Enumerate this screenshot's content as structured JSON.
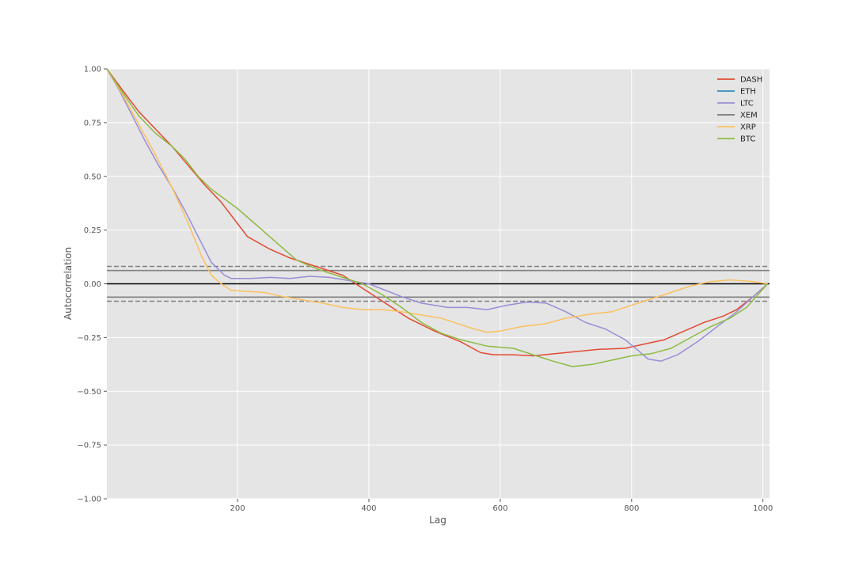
{
  "chart_data": {
    "type": "line",
    "title": "",
    "xlabel": "Lag",
    "ylabel": "Autocorrelation",
    "xlim": [
      1,
      1010
    ],
    "ylim": [
      -1.0,
      1.0
    ],
    "xticks": [
      200,
      400,
      600,
      800,
      1000
    ],
    "xtick_labels": [
      "200",
      "400",
      "600",
      "800",
      "1000"
    ],
    "yticks": [
      -1.0,
      -0.75,
      -0.5,
      -0.25,
      0.0,
      0.25,
      0.5,
      0.75,
      1.0
    ],
    "ytick_labels": [
      "−1.00",
      "−0.75",
      "−0.50",
      "−0.25",
      "0.00",
      "0.25",
      "0.50",
      "0.75",
      "1.00"
    ],
    "grid": true,
    "legend_position": "top-right",
    "reference_lines": [
      {
        "y": 0.0,
        "style": "solid",
        "color": "#000000"
      },
      {
        "y": 0.062,
        "style": "solid",
        "color": "#808080"
      },
      {
        "y": -0.062,
        "style": "solid",
        "color": "#808080"
      },
      {
        "y": 0.081,
        "style": "dashed",
        "color": "#808080"
      },
      {
        "y": -0.081,
        "style": "dashed",
        "color": "#808080"
      }
    ],
    "series": [
      {
        "name": "DASH",
        "color": "#E24A33",
        "points": [
          [
            1,
            1.0
          ],
          [
            25,
            0.9
          ],
          [
            50,
            0.8
          ],
          [
            75,
            0.72
          ],
          [
            100,
            0.64
          ],
          [
            125,
            0.55
          ],
          [
            150,
            0.46
          ],
          [
            175,
            0.38
          ],
          [
            200,
            0.28
          ],
          [
            215,
            0.22
          ],
          [
            250,
            0.16
          ],
          [
            280,
            0.12
          ],
          [
            300,
            0.1
          ],
          [
            330,
            0.07
          ],
          [
            360,
            0.04
          ],
          [
            400,
            -0.04
          ],
          [
            430,
            -0.1
          ],
          [
            460,
            -0.16
          ],
          [
            500,
            -0.22
          ],
          [
            540,
            -0.27
          ],
          [
            570,
            -0.32
          ],
          [
            590,
            -0.33
          ],
          [
            620,
            -0.33
          ],
          [
            650,
            -0.335
          ],
          [
            700,
            -0.32
          ],
          [
            750,
            -0.305
          ],
          [
            790,
            -0.3
          ],
          [
            820,
            -0.28
          ],
          [
            850,
            -0.26
          ],
          [
            880,
            -0.22
          ],
          [
            910,
            -0.18
          ],
          [
            940,
            -0.15
          ],
          [
            960,
            -0.12
          ],
          [
            985,
            -0.06
          ],
          [
            1007,
            0.0
          ]
        ]
      },
      {
        "name": "ETH",
        "color": "#348ABD",
        "points": []
      },
      {
        "name": "LTC",
        "color": "#988ED5",
        "points": [
          [
            1,
            1.0
          ],
          [
            20,
            0.9
          ],
          [
            40,
            0.78
          ],
          [
            60,
            0.66
          ],
          [
            80,
            0.55
          ],
          [
            100,
            0.45
          ],
          [
            120,
            0.34
          ],
          [
            140,
            0.22
          ],
          [
            160,
            0.1
          ],
          [
            180,
            0.04
          ],
          [
            190,
            0.025
          ],
          [
            220,
            0.025
          ],
          [
            250,
            0.03
          ],
          [
            280,
            0.025
          ],
          [
            310,
            0.035
          ],
          [
            340,
            0.03
          ],
          [
            360,
            0.02
          ],
          [
            400,
            0.0
          ],
          [
            450,
            -0.06
          ],
          [
            480,
            -0.09
          ],
          [
            520,
            -0.11
          ],
          [
            550,
            -0.11
          ],
          [
            580,
            -0.12
          ],
          [
            610,
            -0.1
          ],
          [
            640,
            -0.085
          ],
          [
            670,
            -0.09
          ],
          [
            700,
            -0.13
          ],
          [
            730,
            -0.18
          ],
          [
            760,
            -0.21
          ],
          [
            790,
            -0.26
          ],
          [
            810,
            -0.31
          ],
          [
            825,
            -0.35
          ],
          [
            845,
            -0.36
          ],
          [
            870,
            -0.33
          ],
          [
            900,
            -0.27
          ],
          [
            930,
            -0.2
          ],
          [
            960,
            -0.13
          ],
          [
            985,
            -0.06
          ],
          [
            1007,
            0.0
          ]
        ]
      },
      {
        "name": "XEM",
        "color": "#777777",
        "points": []
      },
      {
        "name": "XRP",
        "color": "#FBC15E",
        "points": [
          [
            1,
            1.0
          ],
          [
            25,
            0.88
          ],
          [
            50,
            0.74
          ],
          [
            75,
            0.6
          ],
          [
            100,
            0.45
          ],
          [
            125,
            0.28
          ],
          [
            145,
            0.13
          ],
          [
            160,
            0.04
          ],
          [
            175,
            0.0
          ],
          [
            190,
            -0.03
          ],
          [
            210,
            -0.035
          ],
          [
            240,
            -0.04
          ],
          [
            270,
            -0.06
          ],
          [
            300,
            -0.075
          ],
          [
            330,
            -0.09
          ],
          [
            360,
            -0.11
          ],
          [
            390,
            -0.12
          ],
          [
            420,
            -0.12
          ],
          [
            450,
            -0.13
          ],
          [
            480,
            -0.145
          ],
          [
            510,
            -0.16
          ],
          [
            540,
            -0.19
          ],
          [
            560,
            -0.21
          ],
          [
            580,
            -0.225
          ],
          [
            600,
            -0.22
          ],
          [
            630,
            -0.2
          ],
          [
            670,
            -0.185
          ],
          [
            700,
            -0.16
          ],
          [
            740,
            -0.14
          ],
          [
            770,
            -0.13
          ],
          [
            800,
            -0.1
          ],
          [
            830,
            -0.07
          ],
          [
            860,
            -0.04
          ],
          [
            890,
            -0.01
          ],
          [
            920,
            0.01
          ],
          [
            950,
            0.018
          ],
          [
            980,
            0.012
          ],
          [
            1007,
            0.0
          ]
        ]
      },
      {
        "name": "BTC",
        "color": "#8EBA42",
        "points": [
          [
            1,
            1.0
          ],
          [
            25,
            0.89
          ],
          [
            50,
            0.78
          ],
          [
            75,
            0.7
          ],
          [
            100,
            0.64
          ],
          [
            120,
            0.58
          ],
          [
            140,
            0.5
          ],
          [
            160,
            0.44
          ],
          [
            200,
            0.35
          ],
          [
            230,
            0.27
          ],
          [
            260,
            0.19
          ],
          [
            290,
            0.11
          ],
          [
            320,
            0.07
          ],
          [
            360,
            0.03
          ],
          [
            390,
            0.0
          ],
          [
            420,
            -0.05
          ],
          [
            450,
            -0.11
          ],
          [
            480,
            -0.18
          ],
          [
            510,
            -0.23
          ],
          [
            540,
            -0.26
          ],
          [
            580,
            -0.29
          ],
          [
            620,
            -0.3
          ],
          [
            650,
            -0.33
          ],
          [
            680,
            -0.36
          ],
          [
            710,
            -0.385
          ],
          [
            740,
            -0.375
          ],
          [
            770,
            -0.355
          ],
          [
            800,
            -0.335
          ],
          [
            830,
            -0.325
          ],
          [
            860,
            -0.3
          ],
          [
            890,
            -0.25
          ],
          [
            920,
            -0.2
          ],
          [
            950,
            -0.16
          ],
          [
            975,
            -0.11
          ],
          [
            1007,
            0.0
          ]
        ]
      }
    ]
  }
}
